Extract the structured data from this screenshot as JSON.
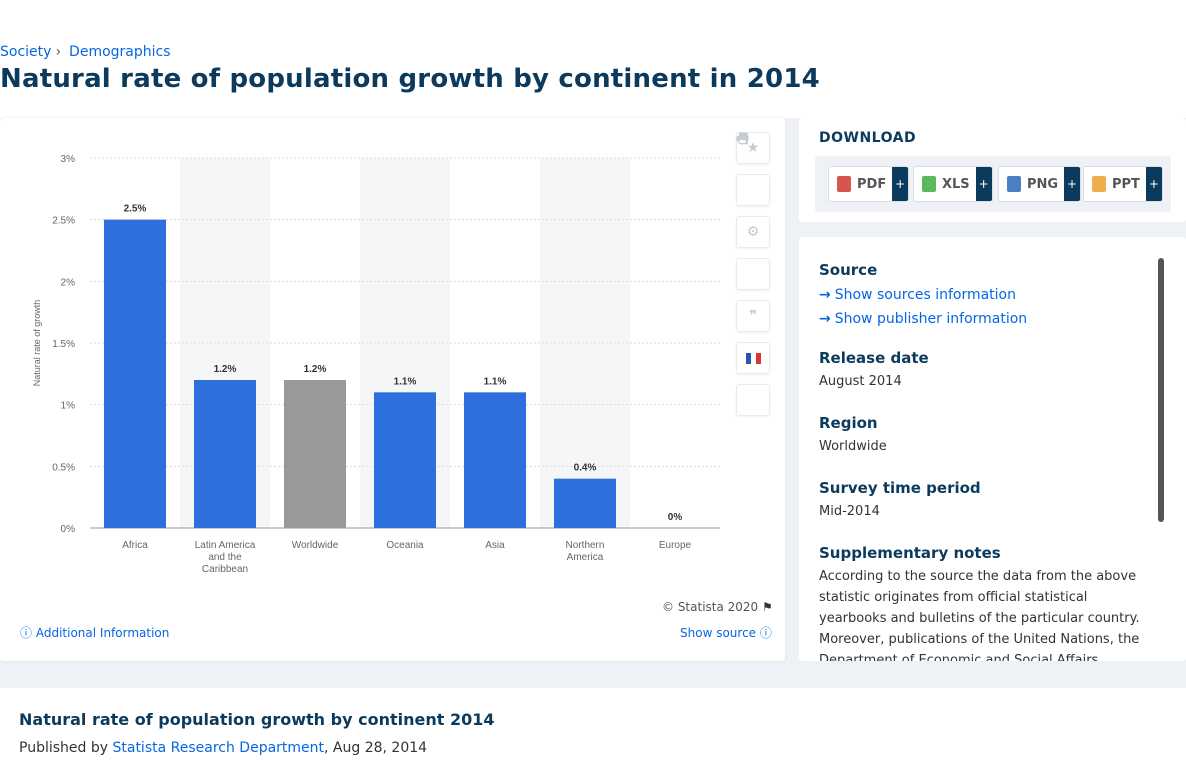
{
  "breadcrumb": {
    "items": [
      "Society",
      "Demographics"
    ]
  },
  "page_title": "Natural rate of population growth by continent in 2014",
  "chart_data": {
    "type": "bar",
    "categories": [
      "Africa",
      "Latin America and the Caribbean",
      "Worldwide",
      "Oceania",
      "Asia",
      "Northern America",
      "Europe"
    ],
    "values": [
      2.5,
      1.2,
      1.2,
      1.1,
      1.1,
      0.4,
      0
    ],
    "data_labels": [
      "2.5%",
      "1.2%",
      "1.2%",
      "1.1%",
      "1.1%",
      "0.4%",
      "0%"
    ],
    "ylabel": "Natural rate of growth",
    "ylim": [
      0,
      3
    ],
    "yticks": [
      "0%",
      "0.5%",
      "1%",
      "1.5%",
      "2%",
      "2.5%",
      "3%"
    ],
    "grid": true,
    "colors": {
      "default": "#2d6fdc",
      "highlight": "#999999",
      "highlight_category": "Worldwide",
      "band": "#f5f6f8"
    }
  },
  "chart_footer": {
    "copyright": "© Statista 2020",
    "additional_info": "Additional Information",
    "show_source": "Show source"
  },
  "toolbar_icons": [
    "star-icon",
    "bell-icon",
    "gear-icon",
    "share-icon",
    "quote-icon",
    "french-flag-icon",
    "print-icon"
  ],
  "download": {
    "title": "DOWNLOAD",
    "buttons": [
      {
        "label": "PDF",
        "color": "#d9534f"
      },
      {
        "label": "XLS",
        "color": "#5cb85c"
      },
      {
        "label": "PNG",
        "color": "#4a7fc1"
      },
      {
        "label": "PPT",
        "color": "#f0ad4e"
      }
    ],
    "plus": "+"
  },
  "info": {
    "source_heading": "Source",
    "show_sources": "Show sources information",
    "show_publisher": "Show publisher information",
    "release_heading": "Release date",
    "release_value": "August 2014",
    "region_heading": "Region",
    "region_value": "Worldwide",
    "survey_heading": "Survey time period",
    "survey_value": "Mid-2014",
    "notes_heading": "Supplementary notes",
    "notes_value": "According to the source the data from the above statistic originates from official statistical yearbooks and bulletins of the particular country. Moreover, publications of the United Nations, the Department of Economic and Social Affairs (Population Division) of the UN and the U.S. Census Bureau were used to"
  },
  "bottom": {
    "title": "Natural rate of population growth by continent 2014",
    "published_prefix": "Published by",
    "publisher": "Statista Research Department",
    "date": ", Aug 28, 2014"
  }
}
